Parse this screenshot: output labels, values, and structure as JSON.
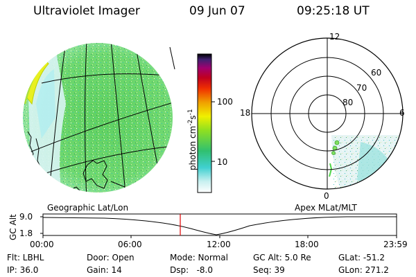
{
  "header": {
    "instrument": "Ultraviolet Imager",
    "date": "09 Jun 07",
    "time": "09:25:18 UT"
  },
  "colorbar": {
    "unit_label": "photon cm",
    "unit_exp1": "-2",
    "unit_mid": "s",
    "unit_exp2": "-1",
    "ticks": [
      "100",
      "10"
    ]
  },
  "polar_plot": {
    "mlt_labels": {
      "top": "12",
      "left": "18",
      "right": "6",
      "bottom": "0"
    },
    "lat_labels": [
      "60",
      "70",
      "80"
    ]
  },
  "panel_labels": {
    "left": "Geographic Lat/Lon",
    "right": "Apex MLat/MLT"
  },
  "altitude_panel": {
    "ylabel": "GC Alt",
    "yticks": [
      "9.0",
      "1.8"
    ],
    "xticks": [
      "00:00",
      "06:00",
      "12:00",
      "18:00",
      "23:59"
    ]
  },
  "info": {
    "flt": "Flt: LBHL",
    "ip": "IP: 36.0",
    "door": "Door: Open",
    "gain": "Gain: 14",
    "mode": "Mode: Normal",
    "dsp": "Dsp:   -8.0",
    "gcalt": "GC Alt: 5.0 Re",
    "seq": "Seq: 39",
    "glat": "GLat: -51.2",
    "glon": "GLon: 271.2"
  },
  "colors": {
    "marker_line": "#e00000",
    "aurora_green": "#4fd64a",
    "aurora_cyan": "#7fe0e0"
  }
}
